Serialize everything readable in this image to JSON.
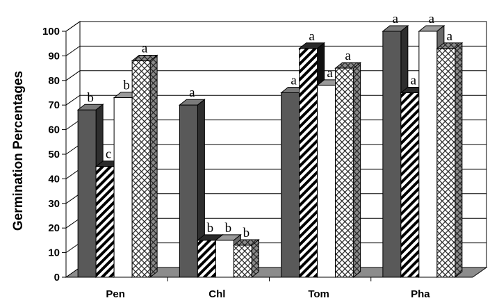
{
  "chart_data": {
    "type": "bar",
    "ylabel": "Germination Percentages",
    "xlabel": "",
    "ylim": [
      0,
      100
    ],
    "yticks": [
      "0",
      "10",
      "20",
      "30",
      "40",
      "50",
      "60",
      "70",
      "80",
      "90",
      "100"
    ],
    "categories": [
      "Pen",
      "Chl",
      "Tom",
      "Pha"
    ],
    "grid": "horizontal",
    "legend": "none",
    "series": [
      {
        "fill": "solid-dark",
        "color": "#595959",
        "values": [
          68,
          70,
          75,
          100
        ],
        "labels": [
          "b",
          "a",
          "a",
          "a"
        ]
      },
      {
        "fill": "diagonal-hatch",
        "color": "#000000",
        "values": [
          45,
          15,
          93,
          75
        ],
        "labels": [
          "c",
          "b",
          "a",
          "a"
        ]
      },
      {
        "fill": "white",
        "color": "#ffffff",
        "values": [
          73,
          15,
          78,
          100
        ],
        "labels": [
          "b",
          "b",
          "a",
          "a"
        ]
      },
      {
        "fill": "crosshatch",
        "color": "#7f7f7f",
        "values": [
          88,
          13,
          85,
          93
        ],
        "labels": [
          "a",
          "b",
          "a",
          "a"
        ]
      }
    ]
  }
}
